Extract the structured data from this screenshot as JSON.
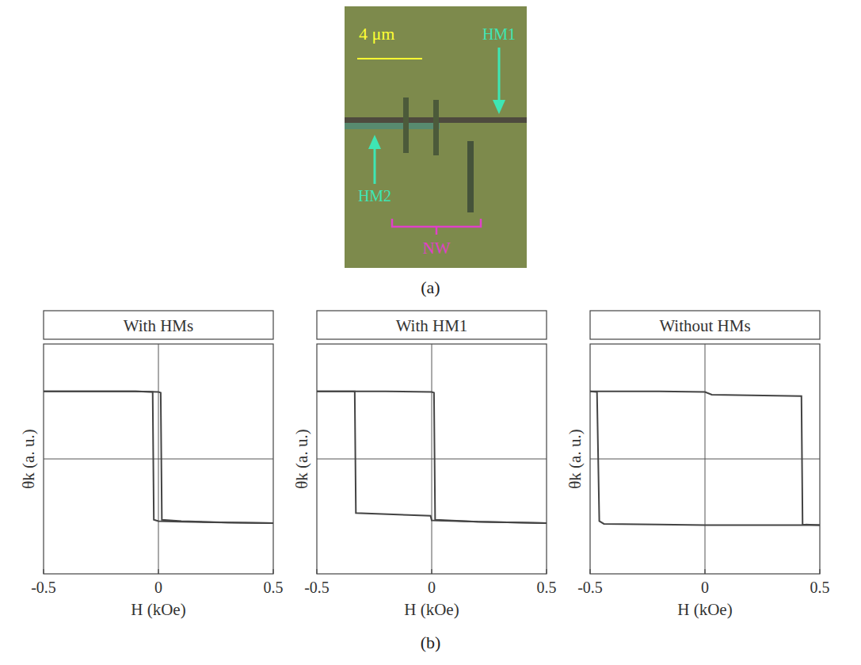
{
  "figure_a": {
    "scale_bar": "4 μm",
    "labels": [
      "HM1",
      "HM2",
      "NW"
    ],
    "caption": "(a)"
  },
  "caption_b": "(b)",
  "chart_data": [
    {
      "type": "line",
      "title": "With HMs",
      "x_label": "H (kOe)",
      "y_label": "θk (a. u.)",
      "xlim": [
        -0.5,
        0.5
      ],
      "ylim": [
        -1.7,
        1.7
      ],
      "xticks": [
        -0.5,
        0,
        0.5
      ],
      "yticks": [
        0
      ],
      "tick_labels": "x",
      "grid": true,
      "series": [
        {
          "color": "#444444",
          "x": [
            0.5,
            0.3,
            0.1,
            0.0,
            -0.02,
            -0.025,
            -0.1,
            -0.3,
            -0.5
          ],
          "values": [
            -0.95,
            -0.94,
            -0.93,
            -0.92,
            -0.9,
            0.99,
            1.0,
            1.0,
            1.0
          ]
        },
        {
          "color": "#444444",
          "x": [
            -0.5,
            -0.3,
            -0.1,
            0.0,
            0.01,
            0.015,
            0.1,
            0.3,
            0.5
          ],
          "values": [
            1.0,
            1.0,
            1.0,
            0.99,
            0.98,
            -0.9,
            -0.92,
            -0.94,
            -0.95
          ]
        }
      ]
    },
    {
      "type": "line",
      "title": "With HM1",
      "x_label": "H (kOe)",
      "y_label": "θk (a. u.)",
      "xlim": [
        -0.5,
        0.5
      ],
      "ylim": [
        -1.7,
        1.7
      ],
      "xticks": [
        -0.5,
        0,
        0.5
      ],
      "yticks": [
        0
      ],
      "tick_labels": "x",
      "grid": true,
      "series": [
        {
          "color": "#444444",
          "x": [
            -0.5,
            -0.2,
            0.0,
            0.01,
            0.015,
            0.2,
            0.5
          ],
          "values": [
            1.0,
            1.0,
            0.99,
            0.98,
            -0.9,
            -0.93,
            -0.95
          ]
        },
        {
          "color": "#444444",
          "x": [
            0.5,
            0.2,
            0.0,
            -0.005,
            -0.1,
            -0.33,
            -0.335,
            -0.4,
            -0.5
          ],
          "values": [
            -0.95,
            -0.93,
            -0.91,
            -0.84,
            -0.83,
            -0.8,
            1.0,
            1.0,
            1.0
          ]
        }
      ]
    },
    {
      "type": "line",
      "title": "Without HMs",
      "x_label": "H (kOe)",
      "y_label": "θk (a. u.)",
      "xlim": [
        -0.5,
        0.5
      ],
      "ylim": [
        -1.7,
        1.7
      ],
      "xticks": [
        -0.5,
        0,
        0.5
      ],
      "yticks": [
        0
      ],
      "tick_labels": "x",
      "grid": true,
      "series": [
        {
          "color": "#444444",
          "x": [
            -0.5,
            -0.2,
            0.0,
            0.03,
            0.2,
            0.42,
            0.425,
            0.5
          ],
          "values": [
            1.0,
            1.0,
            0.99,
            0.95,
            0.94,
            0.93,
            -0.97,
            -0.98
          ]
        },
        {
          "color": "#444444",
          "x": [
            0.5,
            0.2,
            0.0,
            -0.2,
            -0.44,
            -0.46,
            -0.47,
            -0.5
          ],
          "values": [
            -0.98,
            -0.98,
            -0.98,
            -0.97,
            -0.96,
            -0.92,
            0.99,
            1.0
          ]
        }
      ]
    }
  ]
}
